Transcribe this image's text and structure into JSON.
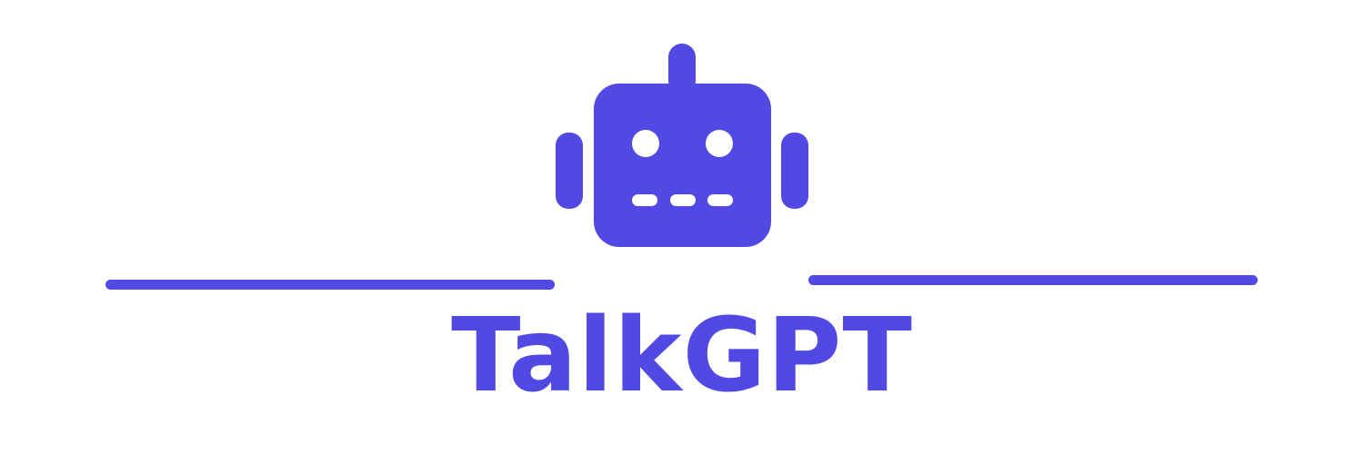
{
  "logo": {
    "name": "TalkGPT",
    "icon": "robot-icon",
    "brand_color": "#5049E4",
    "background_color": "#FFFFFF"
  }
}
